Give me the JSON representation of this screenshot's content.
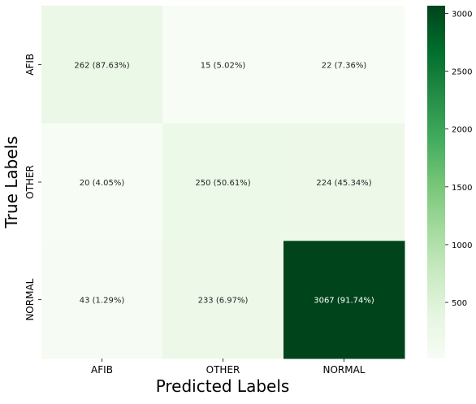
{
  "chart_data": {
    "type": "heatmap",
    "xlabel": "Predicted Labels",
    "ylabel": "True Labels",
    "x_categories": [
      "AFIB",
      "OTHER",
      "NORMAL"
    ],
    "y_categories": [
      "AFIB",
      "OTHER",
      "NORMAL"
    ],
    "values": [
      [
        262,
        15,
        22
      ],
      [
        20,
        250,
        224
      ],
      [
        43,
        233,
        3067
      ]
    ],
    "cell_labels": [
      [
        "262 (87.63%)",
        "15 (5.02%)",
        "22 (7.36%)"
      ],
      [
        "20 (4.05%)",
        "250 (50.61%)",
        "224 (45.34%)"
      ],
      [
        "43 (1.29%)",
        "233 (6.97%)",
        "3067 (91.74%)"
      ]
    ],
    "colormap": "Greens",
    "color_range": [
      15,
      3067
    ],
    "colorbar_ticks": [
      "500",
      "1000",
      "1500",
      "2000",
      "2500",
      "3000"
    ],
    "colorbar_tick_values": [
      500,
      1000,
      1500,
      2000,
      2500,
      3000
    ]
  }
}
